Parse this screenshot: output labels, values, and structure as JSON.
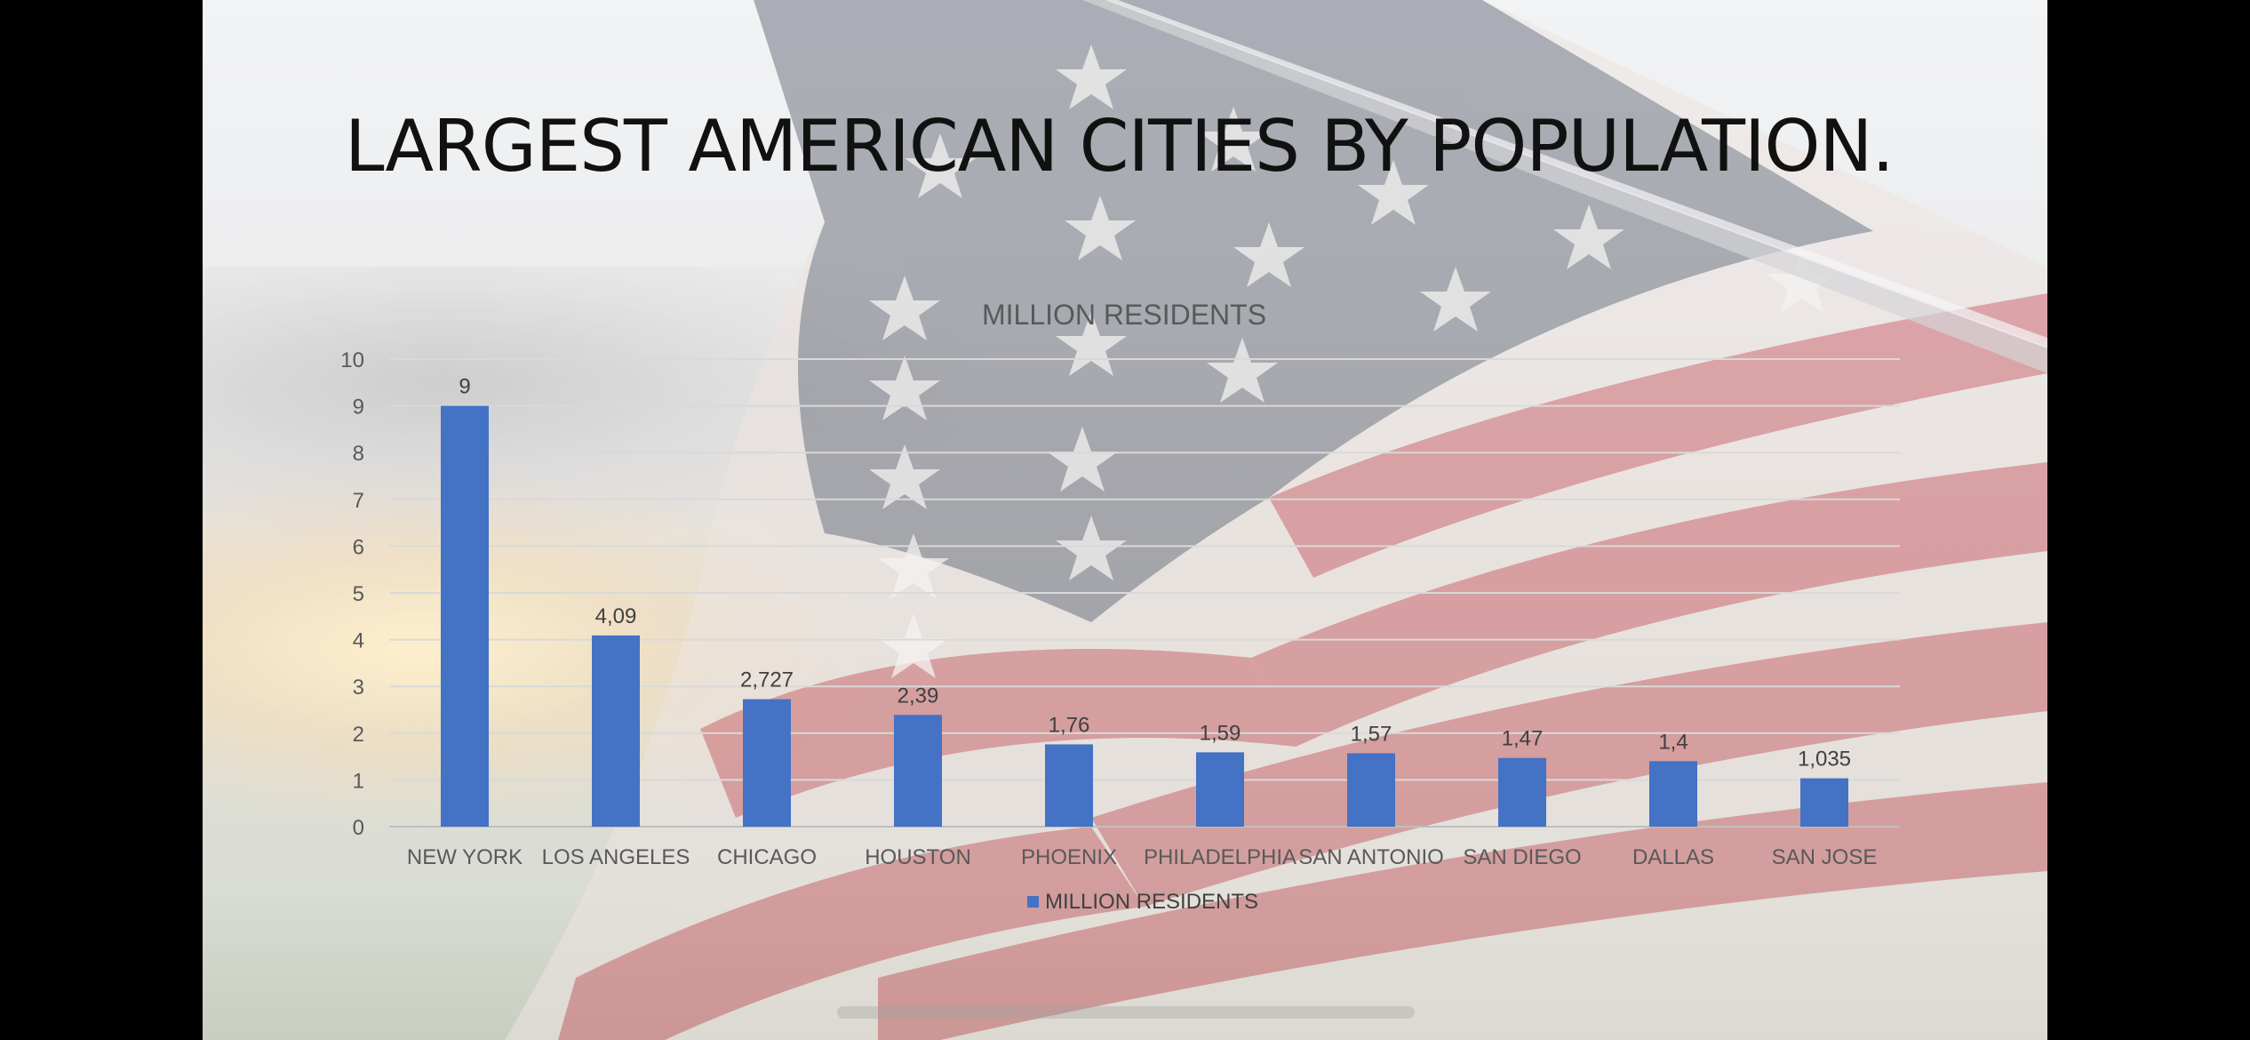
{
  "slide": {
    "title": "LARGEST AMERICAN CITIES BY POPULATION."
  },
  "chart_data": {
    "type": "bar",
    "title": "MILLION RESIDENTS",
    "categories": [
      "NEW YORK",
      "LOS ANGELES",
      "CHICAGO",
      "HOUSTON",
      "PHOENIX",
      "PHILADELPHIA",
      "SAN ANTONIO",
      "SAN DIEGO",
      "DALLAS",
      "SAN JOSE"
    ],
    "series": [
      {
        "name": "MILLION RESIDENTS",
        "values": [
          9,
          4.09,
          2.727,
          2.39,
          1.76,
          1.59,
          1.57,
          1.47,
          1.4,
          1.035
        ],
        "labels": [
          "9",
          "4,09",
          "2,727",
          "2,39",
          "1,76",
          "1,59",
          "1,57",
          "1,47",
          "1,4",
          "1,035"
        ],
        "color": "#4472C4"
      }
    ],
    "ylim": [
      0,
      10
    ],
    "yticks": [
      "0",
      "1",
      "2",
      "3",
      "4",
      "5",
      "6",
      "7",
      "8",
      "9",
      "10"
    ],
    "grid": true,
    "legend": "bottom",
    "colors": {
      "bar": "#4472C4",
      "grid": "#d9d9d9",
      "text": "#595959"
    }
  }
}
